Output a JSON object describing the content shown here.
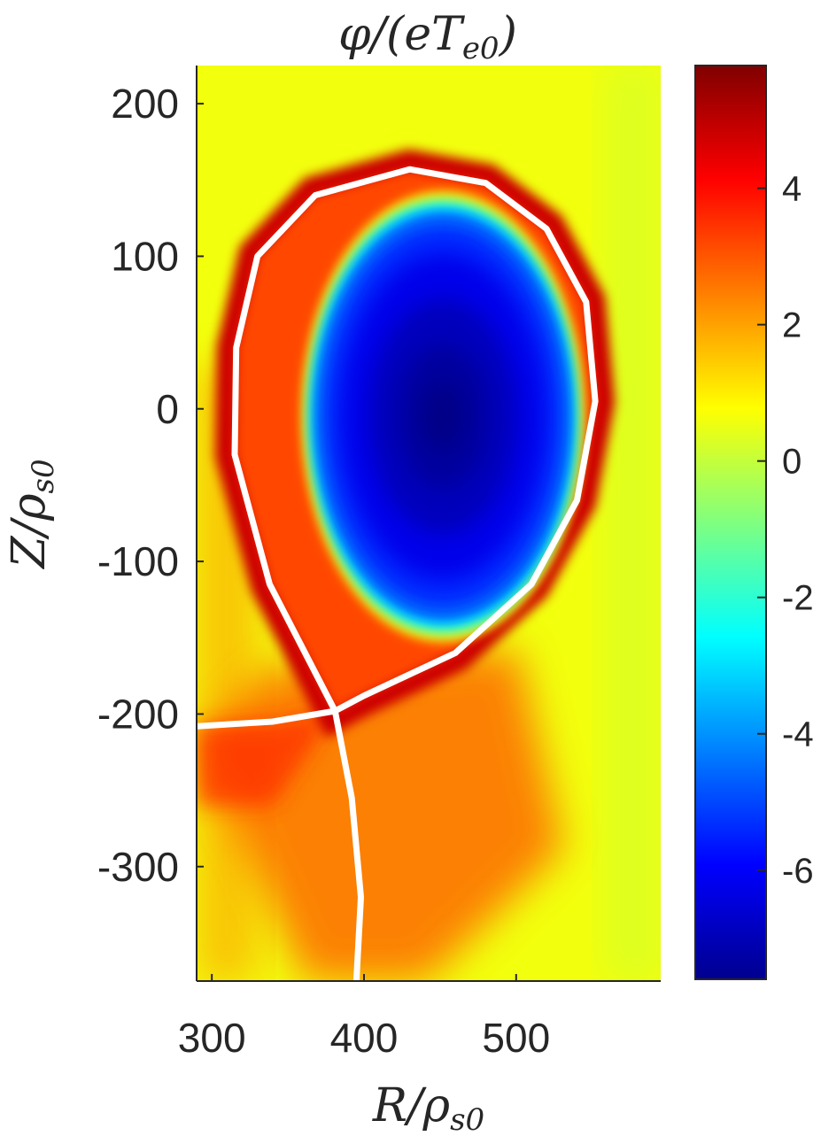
{
  "chart_data": {
    "type": "heatmap",
    "title": {
      "main": "φ/(eT",
      "sub": "e0",
      "close": ")"
    },
    "xlabel": {
      "main": "R/ρ",
      "sub": "s0"
    },
    "ylabel": {
      "main": "Z/ρ",
      "sub": "s0"
    },
    "x_range": [
      290,
      595
    ],
    "y_range": [
      -375,
      225
    ],
    "x_ticks": [
      300,
      400,
      500
    ],
    "x_tick_labels": [
      "300",
      "400",
      "500"
    ],
    "y_ticks": [
      200,
      100,
      0,
      -100,
      -200,
      -300
    ],
    "y_tick_labels": [
      "200",
      "100",
      "0",
      "-100",
      "-200",
      "-300"
    ],
    "colorbar": {
      "colormap": "jet",
      "range": [
        -7.6,
        5.8
      ],
      "ticks": [
        4,
        2,
        0,
        -2,
        -4,
        -6
      ],
      "tick_labels": [
        "4",
        "2",
        "0",
        "-2",
        "-4",
        "-6"
      ]
    },
    "field": {
      "background_value": 0.6,
      "core": {
        "center": [
          452,
          -5
        ],
        "half_width": 93,
        "half_height": 148,
        "min_value": -7.6
      },
      "edge_band_value": 4.8,
      "divertor_leg_value": 3.0
    },
    "separatrix": {
      "color": "#ffffff",
      "x_point": [
        381,
        -198
      ],
      "core_curve": [
        [
          381,
          -198
        ],
        [
          338,
          -115
        ],
        [
          315,
          -30
        ],
        [
          316,
          40
        ],
        [
          330,
          100
        ],
        [
          368,
          140
        ],
        [
          430,
          157
        ],
        [
          480,
          148
        ],
        [
          520,
          118
        ],
        [
          546,
          70
        ],
        [
          552,
          5
        ],
        [
          540,
          -60
        ],
        [
          510,
          -115
        ],
        [
          460,
          -160
        ],
        [
          400,
          -188
        ],
        [
          381,
          -198
        ]
      ],
      "inner_leg": [
        [
          381,
          -198
        ],
        [
          340,
          -205
        ],
        [
          290,
          -208
        ]
      ],
      "outer_leg": [
        [
          381,
          -198
        ],
        [
          392,
          -255
        ],
        [
          398,
          -320
        ],
        [
          395,
          -375
        ]
      ]
    }
  }
}
